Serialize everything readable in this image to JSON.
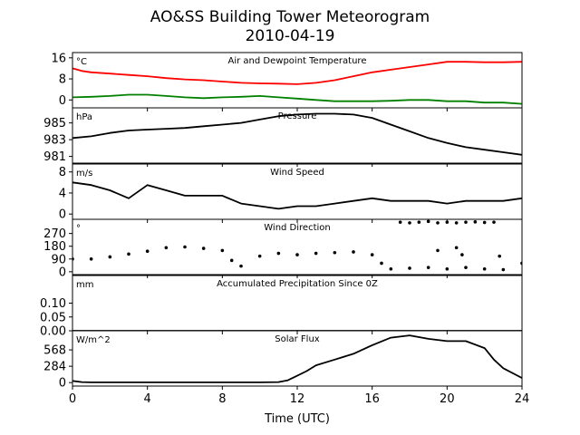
{
  "figure": {
    "title_line1": "AO&SS Building Tower Meteorogram",
    "title_line2": "2010-04-19",
    "xlabel": "Time (UTC)",
    "x_ticks": [
      0,
      4,
      8,
      12,
      16,
      20,
      24
    ],
    "x_range": [
      0,
      24
    ]
  },
  "chart_data": [
    {
      "type": "line",
      "title": "Air and Dewpoint Temperature",
      "unit_label": "°C",
      "ylim": [
        -3,
        18
      ],
      "y_ticks": [
        0,
        8,
        16
      ],
      "series": [
        {
          "color": "#ff0000",
          "x": [
            0,
            0.5,
            1,
            2,
            3,
            4,
            5,
            6,
            7,
            8,
            9,
            10,
            11,
            12,
            13,
            14,
            15,
            16,
            17,
            18,
            19,
            20,
            21,
            22,
            23,
            24
          ],
          "y": [
            12,
            11,
            10.5,
            10,
            9.5,
            9,
            8.3,
            7.8,
            7.5,
            7,
            6.5,
            6.3,
            6.2,
            6,
            6.5,
            7.5,
            9,
            10.5,
            11.5,
            12.5,
            13.5,
            14.5,
            14.5,
            14.3,
            14.3,
            14.5
          ]
        },
        {
          "color": "#008000",
          "x": [
            0,
            1,
            2,
            3,
            4,
            5,
            6,
            7,
            8,
            9,
            10,
            11,
            12,
            13,
            14,
            15,
            16,
            17,
            18,
            19,
            20,
            21,
            22,
            23,
            24
          ],
          "y": [
            1,
            1.2,
            1.5,
            2,
            2,
            1.5,
            1,
            0.7,
            1,
            1.2,
            1.5,
            1,
            0.5,
            0,
            -0.5,
            -0.5,
            -0.5,
            -0.3,
            0,
            0,
            -0.5,
            -0.5,
            -1,
            -1,
            -1.5
          ]
        }
      ]
    },
    {
      "type": "line",
      "title": "Pressure",
      "unit_label": "hPa",
      "ylim": [
        980.2,
        986.8
      ],
      "y_ticks": [
        981,
        983,
        985
      ],
      "series": [
        {
          "color": "#000000",
          "x": [
            0,
            1,
            2,
            3,
            4,
            5,
            6,
            7,
            8,
            9,
            10,
            11,
            12,
            13,
            14,
            15,
            16,
            17,
            18,
            19,
            20,
            21,
            22,
            23,
            24
          ],
          "y": [
            983.2,
            983.4,
            983.8,
            984.1,
            984.2,
            984.3,
            984.4,
            984.6,
            984.8,
            985,
            985.4,
            985.8,
            986.0,
            986.1,
            986.1,
            986.0,
            985.6,
            984.8,
            984.0,
            983.2,
            982.6,
            982.1,
            981.8,
            981.5,
            981.2
          ]
        }
      ]
    },
    {
      "type": "line",
      "title": "Wind Speed",
      "unit_label": "m/s",
      "ylim": [
        -1,
        9.5
      ],
      "y_ticks": [
        0,
        4,
        8
      ],
      "series": [
        {
          "color": "#000000",
          "x": [
            0,
            1,
            2,
            3,
            4,
            5,
            6,
            7,
            8,
            9,
            10,
            11,
            12,
            13,
            14,
            15,
            16,
            17,
            18,
            19,
            20,
            21,
            22,
            23,
            24
          ],
          "y": [
            6,
            5.5,
            4.5,
            3,
            5.5,
            4.5,
            3.5,
            3.5,
            3.5,
            2,
            1.5,
            1,
            1.5,
            1.5,
            2,
            2.5,
            3,
            2.5,
            2.5,
            2.5,
            2,
            2.5,
            2.5,
            2.5,
            3
          ]
        }
      ]
    },
    {
      "type": "scatter",
      "title": "Wind Direction",
      "unit_label": "°",
      "ylim": [
        -20,
        370
      ],
      "y_ticks": [
        0,
        90,
        180,
        270
      ],
      "series": [
        {
          "color": "#000000",
          "x": [
            0,
            1,
            2,
            3,
            4,
            5,
            6,
            7,
            8,
            8.5,
            9,
            10,
            11,
            12,
            13,
            14,
            15,
            16,
            16.5,
            17,
            18,
            19,
            20,
            21,
            22,
            23,
            24
          ],
          "y": [
            90,
            90,
            105,
            125,
            145,
            170,
            175,
            165,
            150,
            80,
            40,
            110,
            130,
            120,
            130,
            135,
            140,
            120,
            60,
            20,
            25,
            30,
            20,
            30,
            20,
            15,
            60
          ]
        },
        {
          "color": "#000000",
          "x": [
            17.5,
            18,
            18.5,
            19,
            19.5,
            20,
            20.5,
            21,
            21.5,
            22,
            22.5,
            19.5,
            20.5,
            20.8,
            22.8
          ],
          "y": [
            350,
            345,
            350,
            355,
            345,
            350,
            345,
            350,
            352,
            348,
            350,
            150,
            170,
            120,
            110
          ]
        }
      ]
    },
    {
      "type": "line",
      "title": "Accumulated Precipitation Since 0Z",
      "unit_label": "mm",
      "ylim": [
        0,
        0.2
      ],
      "y_ticks": [
        0.0,
        0.05,
        0.1
      ],
      "y_tick_labels": [
        "0.00",
        "0.05",
        "0.10"
      ],
      "series": [
        {
          "color": "#000000",
          "x": [
            0,
            24
          ],
          "y": [
            0,
            0
          ]
        }
      ]
    },
    {
      "type": "line",
      "title": "Solar Flux",
      "unit_label": "W/m^2",
      "ylim": [
        -60,
        900
      ],
      "y_ticks": [
        0,
        284,
        568
      ],
      "series": [
        {
          "color": "#000000",
          "x": [
            0,
            0.5,
            1,
            2,
            4,
            6,
            8,
            10,
            11,
            11.5,
            12,
            12.5,
            13,
            14,
            15,
            16,
            17,
            18,
            19,
            20,
            21,
            22,
            22.5,
            23,
            24
          ],
          "y": [
            30,
            10,
            5,
            5,
            5,
            5,
            5,
            5,
            10,
            40,
            120,
            200,
            300,
            400,
            500,
            650,
            780,
            820,
            760,
            720,
            720,
            600,
            400,
            250,
            80
          ]
        }
      ]
    }
  ]
}
